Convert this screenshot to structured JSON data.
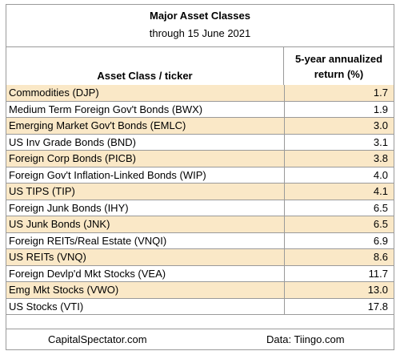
{
  "chart_data": {
    "type": "table",
    "title": "Major Asset Classes",
    "subtitle": "through 15 June 2021",
    "columns": [
      "Asset Class / ticker",
      "5-year annualized return (%)"
    ],
    "column2_lines": [
      "5-year annualized",
      "return (%)"
    ],
    "rows": [
      {
        "name": "Commodities (DJP)",
        "value": "1.7"
      },
      {
        "name": "Medium Term Foreign Gov't Bonds (BWX)",
        "value": "1.9"
      },
      {
        "name": "Emerging Market Gov't Bonds (EMLC)",
        "value": "3.0"
      },
      {
        "name": "US Inv Grade Bonds (BND)",
        "value": "3.1"
      },
      {
        "name": "Foreign Corp Bonds (PICB)",
        "value": "3.8"
      },
      {
        "name": "Foreign Gov't Inflation-Linked Bonds (WIP)",
        "value": "4.0"
      },
      {
        "name": "US TIPS (TIP)",
        "value": "4.1"
      },
      {
        "name": "Foreign Junk Bonds (IHY)",
        "value": "6.5"
      },
      {
        "name": "US Junk Bonds (JNK)",
        "value": "6.5"
      },
      {
        "name": "Foreign REITs/Real Estate (VNQI)",
        "value": "6.9"
      },
      {
        "name": "US REITs (VNQ)",
        "value": "8.6"
      },
      {
        "name": "Foreign Devlp'd Mkt Stocks (VEA)",
        "value": "11.7"
      },
      {
        "name": "Emg Mkt Stocks (VWO)",
        "value": "13.0"
      },
      {
        "name": "US Stocks (VTI)",
        "value": "17.8"
      }
    ],
    "shaded_row_color": "#fae8c7",
    "footer_left": "CapitalSpectator.com",
    "footer_right": "Data: Tiingo.com"
  }
}
